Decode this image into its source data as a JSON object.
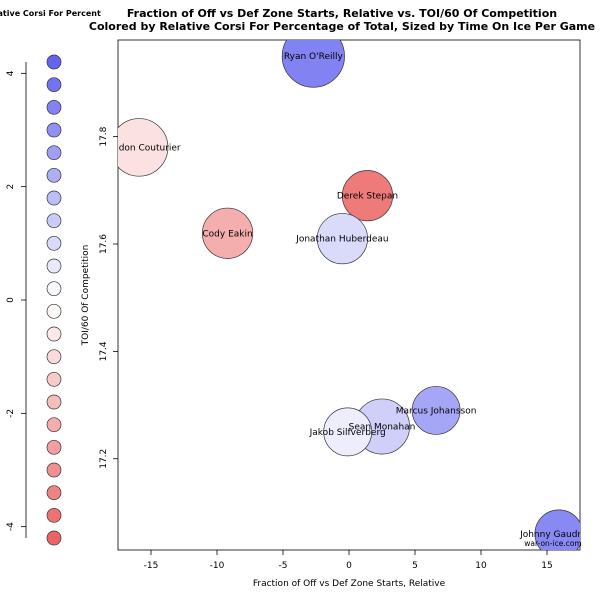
{
  "chart_data": {
    "type": "scatter",
    "title": "Fraction of Off vs Def Zone Starts, Relative vs. TOI/60 Of Competition",
    "subtitle": "Colored by Relative Corsi For Percentage of Total, Sized by Time On Ice Per Game",
    "xlabel": "Fraction of Off vs Def Zone Starts, Relative",
    "ylabel": "TOI/60 Of Competition",
    "xlim": [
      -17.5,
      17.5
    ],
    "ylim": [
      17.03,
      17.98
    ],
    "x_ticks": [
      -15,
      -10,
      -5,
      0,
      5,
      10,
      15
    ],
    "y_ticks": [
      17.2,
      17.4,
      17.6,
      17.8
    ],
    "grid": false,
    "watermark": "war-on-ice.com",
    "color_legend": {
      "title": "Relative Corsi For Percent",
      "ticks": [
        4,
        2,
        0,
        -2,
        -4
      ],
      "range": [
        -4.2,
        4.2
      ],
      "swatches": [
        4.2,
        3.8,
        3.4,
        3.0,
        2.6,
        2.2,
        1.8,
        1.4,
        1.0,
        0.6,
        0.2,
        -0.2,
        -0.6,
        -1.0,
        -1.4,
        -1.8,
        -2.2,
        -2.6,
        -3.0,
        -3.4,
        -3.8,
        -4.2
      ]
    },
    "points": [
      {
        "name": "Ryan O'Reilly",
        "x": -2.7,
        "y": 17.95,
        "size": 1.3,
        "color_value": 3.4
      },
      {
        "name": "Brandon Couturier",
        "x": -15.9,
        "y": 17.78,
        "size": 1.2,
        "color_value": -0.8
      },
      {
        "name": "Derek Stepan",
        "x": 1.4,
        "y": 17.69,
        "size": 1.05,
        "color_value": -3.6
      },
      {
        "name": "Cody Eakin",
        "x": -9.2,
        "y": 17.62,
        "size": 1.05,
        "color_value": -2.2
      },
      {
        "name": "Jonathan Huberdeau",
        "x": -0.5,
        "y": 17.61,
        "size": 1.05,
        "color_value": 1.0
      },
      {
        "name": "Marcus Johansson",
        "x": 6.6,
        "y": 17.29,
        "size": 1.0,
        "color_value": 2.4
      },
      {
        "name": "Sean Monahan",
        "x": 2.5,
        "y": 17.26,
        "size": 1.15,
        "color_value": 1.3
      },
      {
        "name": "Jakob Silfverberg",
        "x": -0.1,
        "y": 17.25,
        "size": 1.0,
        "color_value": 0.5
      },
      {
        "name": "Johnny Gaudreau",
        "x": 15.9,
        "y": 17.06,
        "size": 1.0,
        "color_value": 3.2
      }
    ]
  }
}
